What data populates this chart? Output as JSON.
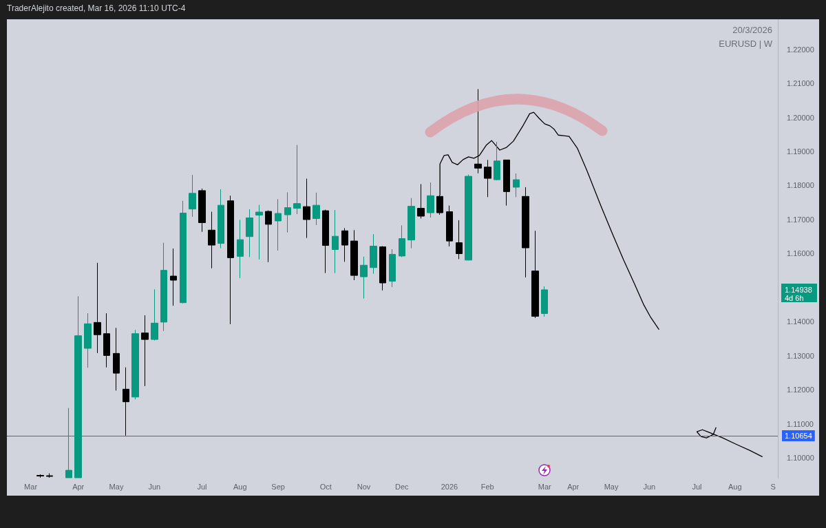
{
  "chart_data": {
    "type": "candlestick",
    "annotations": [
      "TraderAlejito created, Mar 16, 2026 11:10 UTC-4",
      "20/3/2026",
      "EURUSD | W",
      "1.14938\n4d 6h"
    ],
    "xlim": [
      "2025-02-13T12:00",
      "2026-09-03T12:00"
    ],
    "xticks": [
      {
        "value": "2025-03-03",
        "label": "Mar"
      },
      {
        "value": "2025-04-07",
        "label": "Apr"
      },
      {
        "value": "2025-05-05",
        "label": "May"
      },
      {
        "value": "2025-06-02",
        "label": "Jun"
      },
      {
        "value": "2025-07-07",
        "label": "Jul"
      },
      {
        "value": "2025-08-04",
        "label": "Aug"
      },
      {
        "value": "2025-09-01",
        "label": "Sep"
      },
      {
        "value": "2025-10-06",
        "label": "Oct"
      },
      {
        "value": "2025-11-03",
        "label": "Nov"
      },
      {
        "value": "2025-12-01",
        "label": "Dec"
      },
      {
        "value": "2026-01-05",
        "label": "2026"
      },
      {
        "value": "2026-02-02",
        "label": "Feb"
      },
      {
        "value": "2026-03-16",
        "label": "Mar"
      },
      {
        "value": "2026-04-06",
        "label": "Apr"
      },
      {
        "value": "2026-05-04",
        "label": "May"
      },
      {
        "value": "2026-06-01",
        "label": "Jun"
      },
      {
        "value": "2026-07-06",
        "label": "Jul"
      },
      {
        "value": "2026-08-03",
        "label": "Aug"
      },
      {
        "value": "2026-08-31",
        "label": "S"
      }
    ],
    "ylim": [
      1.094,
      1.2288
    ],
    "yticks": [
      {
        "value": 1.1,
        "label": "1.10000"
      },
      {
        "value": 1.11,
        "label": "1.11000"
      },
      {
        "value": 1.12,
        "label": "1.12000"
      },
      {
        "value": 1.13,
        "label": "1.13000"
      },
      {
        "value": 1.14,
        "label": "1.14000"
      },
      {
        "value": 1.16,
        "label": "1.16000"
      },
      {
        "value": 1.17,
        "label": "1.17000"
      },
      {
        "value": 1.18,
        "label": "1.18000"
      },
      {
        "value": 1.19,
        "label": "1.19000"
      },
      {
        "value": 1.2,
        "label": "1.20000"
      },
      {
        "value": 1.21,
        "label": "1.21000"
      },
      {
        "value": 1.22,
        "label": "1.22000"
      }
    ],
    "ref_lines": [
      {
        "axis": "y",
        "value": 1.10654,
        "label": "1.10654",
        "color": "#2962ff"
      }
    ],
    "series": [
      {
        "x": [
          "2025-03-10",
          "2025-03-17",
          "2025-03-31",
          "2025-04-07",
          "2025-04-14",
          "2025-04-21",
          "2025-04-28",
          "2025-05-05",
          "2025-05-12",
          "2025-05-19",
          "2025-05-26",
          "2025-06-02",
          "2025-06-09",
          "2025-06-16",
          "2025-06-23",
          "2025-06-30",
          "2025-07-07",
          "2025-07-14",
          "2025-07-21",
          "2025-07-28",
          "2025-08-04",
          "2025-08-11",
          "2025-08-18",
          "2025-08-25",
          "2025-09-01",
          "2025-09-08",
          "2025-09-15",
          "2025-09-22",
          "2025-09-29",
          "2025-10-06",
          "2025-10-13",
          "2025-10-20",
          "2025-10-27",
          "2025-11-03",
          "2025-11-10",
          "2025-11-17",
          "2025-11-24",
          "2025-12-01",
          "2025-12-08",
          "2025-12-15",
          "2025-12-22",
          "2025-12-29",
          "2026-01-05",
          "2026-01-12",
          "2026-01-19",
          "2026-01-26",
          "2026-02-02",
          "2026-02-09",
          "2026-02-16",
          "2026-02-23",
          "2026-03-02",
          "2026-03-09",
          "2026-03-16"
        ],
        "ohlc": [
          [
            1.0949,
            1.0952,
            1.0942,
            1.0947
          ],
          [
            1.0948,
            1.0955,
            1.0942,
            1.0946
          ],
          [
            1.0942,
            1.1147,
            1.0942,
            1.0964
          ],
          [
            1.0942,
            1.1475,
            1.0942,
            1.1359
          ],
          [
            1.1322,
            1.1425,
            1.1265,
            1.1394
          ],
          [
            1.1398,
            1.1573,
            1.1308,
            1.1362
          ],
          [
            1.1365,
            1.1425,
            1.1266,
            1.1301
          ],
          [
            1.1307,
            1.1382,
            1.1198,
            1.1249
          ],
          [
            1.1202,
            1.1266,
            1.1066,
            1.1165
          ],
          [
            1.1179,
            1.1376,
            1.1172,
            1.1365
          ],
          [
            1.1367,
            1.1419,
            1.1211,
            1.1348
          ],
          [
            1.1348,
            1.1495,
            1.1345,
            1.1396
          ],
          [
            1.1399,
            1.1632,
            1.1373,
            1.1551
          ],
          [
            1.1534,
            1.1615,
            1.1447,
            1.1522
          ],
          [
            1.1456,
            1.1755,
            1.1454,
            1.1719
          ],
          [
            1.1731,
            1.1831,
            1.1708,
            1.1777
          ],
          [
            1.1785,
            1.1791,
            1.1664,
            1.1691
          ],
          [
            1.1669,
            1.1723,
            1.1557,
            1.1625
          ],
          [
            1.163,
            1.1789,
            1.1616,
            1.1742
          ],
          [
            1.1755,
            1.177,
            1.1393,
            1.1588
          ],
          [
            1.1592,
            1.1699,
            1.1528,
            1.1641
          ],
          [
            1.165,
            1.173,
            1.159,
            1.1705
          ],
          [
            1.1713,
            1.1743,
            1.1583,
            1.1722
          ],
          [
            1.1724,
            1.1727,
            1.1575,
            1.1686
          ],
          [
            1.1696,
            1.176,
            1.1609,
            1.1718
          ],
          [
            1.1714,
            1.178,
            1.1662,
            1.1735
          ],
          [
            1.1733,
            1.1919,
            1.1716,
            1.1747
          ],
          [
            1.1738,
            1.182,
            1.1646,
            1.17
          ],
          [
            1.1703,
            1.1779,
            1.1684,
            1.1742
          ],
          [
            1.1726,
            1.1729,
            1.1543,
            1.1624
          ],
          [
            1.1612,
            1.1728,
            1.1543,
            1.1651
          ],
          [
            1.1667,
            1.1675,
            1.1576,
            1.1625
          ],
          [
            1.1637,
            1.1669,
            1.1522,
            1.1536
          ],
          [
            1.1532,
            1.1591,
            1.1468,
            1.1566
          ],
          [
            1.1559,
            1.1657,
            1.1541,
            1.1622
          ],
          [
            1.162,
            1.1622,
            1.1492,
            1.1514
          ],
          [
            1.1519,
            1.1613,
            1.1502,
            1.1598
          ],
          [
            1.1593,
            1.1683,
            1.159,
            1.1644
          ],
          [
            1.164,
            1.1763,
            1.1616,
            1.1739
          ],
          [
            1.1733,
            1.1804,
            1.1703,
            1.171
          ],
          [
            1.172,
            1.1809,
            1.1706,
            1.177
          ],
          [
            1.1768,
            1.1772,
            1.1714,
            1.172
          ],
          [
            1.1723,
            1.1741,
            1.1621,
            1.1637
          ],
          [
            1.1632,
            1.1698,
            1.1584,
            1.16
          ],
          [
            1.1581,
            1.1832,
            1.158,
            1.1827
          ],
          [
            1.1863,
            1.2083,
            1.1836,
            1.1851
          ],
          [
            1.1854,
            1.1875,
            1.1766,
            1.1821
          ],
          [
            1.1817,
            1.1928,
            1.1815,
            1.1872
          ],
          [
            1.1875,
            1.1875,
            1.1741,
            1.1782
          ],
          [
            1.1795,
            1.1835,
            1.1766,
            1.1817
          ],
          [
            1.1768,
            1.1795,
            1.153,
            1.1617
          ],
          [
            1.1549,
            1.1667,
            1.1411,
            1.1416
          ],
          [
            1.1424,
            1.1504,
            1.1415,
            1.14938
          ]
        ],
        "colors": [
          "#000000",
          "#000000",
          "#089981",
          "#089981",
          "#089981",
          "#000000",
          "#000000",
          "#000000",
          "#000000",
          "#089981",
          "#000000",
          "#089981",
          "#089981",
          "#000000",
          "#089981",
          "#089981",
          "#000000",
          "#000000",
          "#089981",
          "#000000",
          "#089981",
          "#089981",
          "#089981",
          "#000000",
          "#089981",
          "#089981",
          "#089981",
          "#000000",
          "#089981",
          "#000000",
          "#089981",
          "#000000",
          "#000000",
          "#089981",
          "#089981",
          "#000000",
          "#089981",
          "#089981",
          "#089981",
          "#000000",
          "#089981",
          "#000000",
          "#000000",
          "#000000",
          "#089981",
          "#000000",
          "#000000",
          "#089981",
          "#000000",
          "#089981",
          "#000000",
          "#000000",
          "#089981"
        ]
      },
      {
        "type": "line",
        "color": "#000000",
        "x": [
          "2025-12-29",
          "2025-12-29",
          "2026-01-01",
          "2026-01-04",
          "2026-01-07",
          "2026-01-11",
          "2026-01-15",
          "2026-01-19",
          "2026-01-23",
          "2026-01-27",
          "2026-02-01",
          "2026-02-05",
          "2026-02-08",
          "2026-02-11",
          "2026-02-16",
          "2026-02-21",
          "2026-02-28",
          "2026-03-05",
          "2026-03-08",
          "2026-03-12",
          "2026-03-16",
          "2026-03-20",
          "2026-03-23",
          "2026-03-26",
          "2026-03-30",
          "2026-04-03",
          "2026-04-09",
          "2026-04-16",
          "2026-04-26",
          "2026-05-05",
          "2026-05-13",
          "2026-05-21",
          "2026-05-28",
          "2026-06-02",
          "2026-06-08"
        ],
        "values": [
          1.1772,
          1.1863,
          1.1888,
          1.189,
          1.1868,
          1.1861,
          1.1876,
          1.1884,
          1.188,
          1.1888,
          1.1918,
          1.1932,
          1.1918,
          1.1904,
          1.1912,
          1.193,
          1.1975,
          1.2011,
          1.2015,
          1.1997,
          1.1981,
          1.1975,
          1.1965,
          1.1948,
          1.1946,
          1.1944,
          1.191,
          1.1845,
          1.1744,
          1.1657,
          1.1582,
          1.1512,
          1.1449,
          1.1413,
          1.1378
        ]
      },
      {
        "type": "line",
        "color": "#000000",
        "x": [
          "2026-07-20",
          "2026-07-18",
          "2026-07-13",
          "2026-07-09",
          "2026-07-06",
          "2026-07-10",
          "2026-07-15",
          "2026-07-25",
          "2026-08-04",
          "2026-08-14",
          "2026-08-23"
        ],
        "values": [
          1.1089,
          1.1069,
          1.1059,
          1.1063,
          1.1077,
          1.1083,
          1.1075,
          1.1059,
          1.104,
          1.1022,
          1.1004
        ]
      }
    ]
  }
}
